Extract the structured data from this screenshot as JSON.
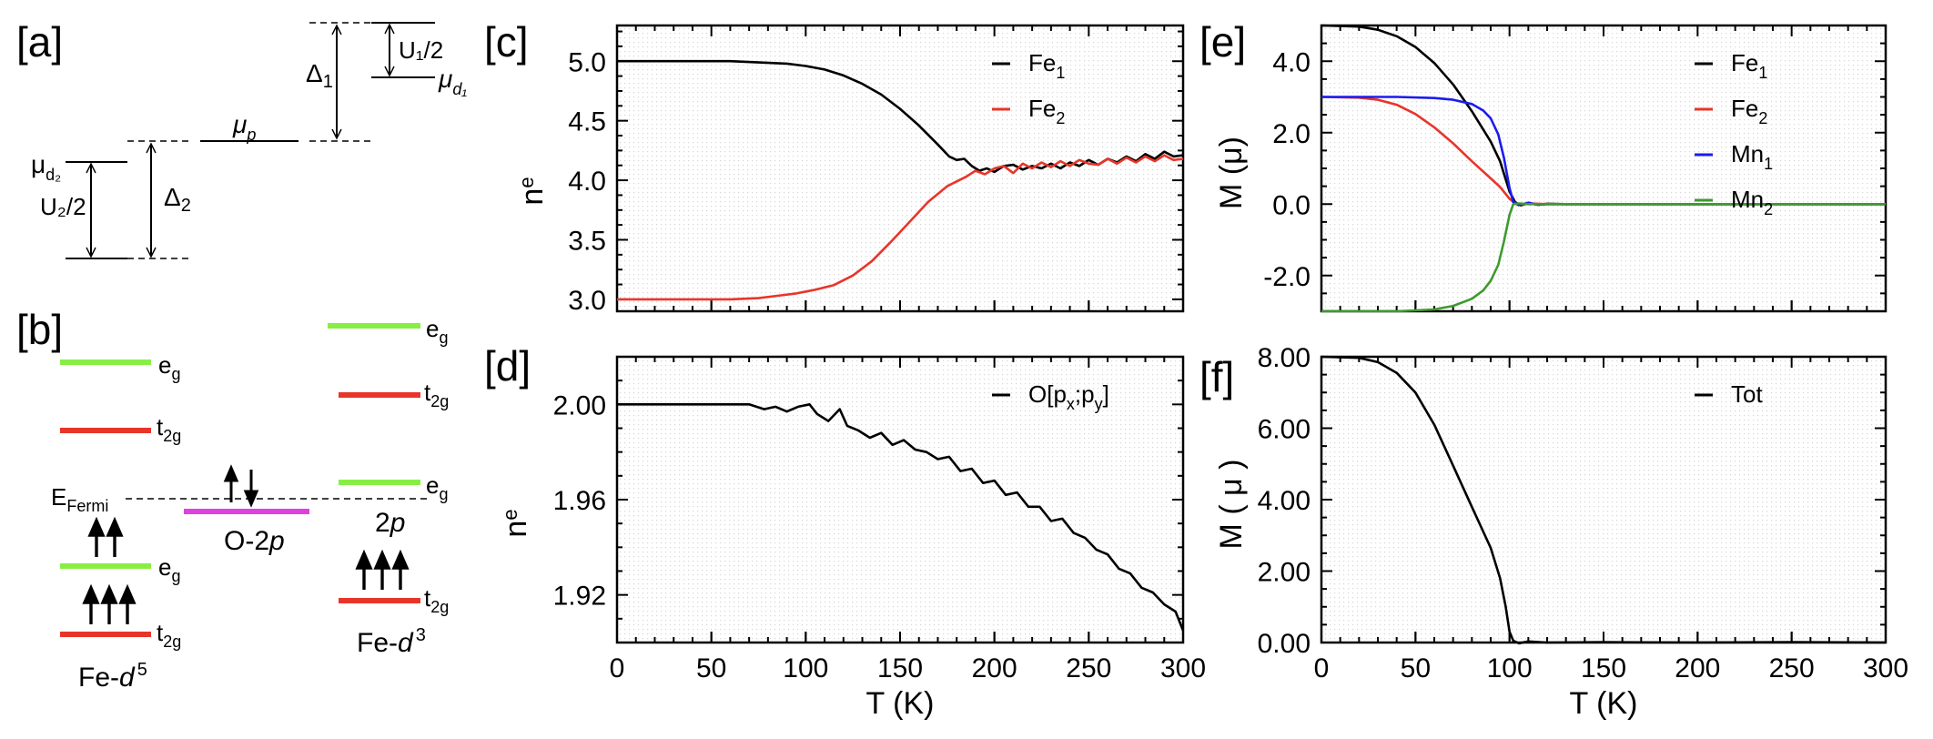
{
  "colors": {
    "black": "#000000",
    "red": "#e8352a",
    "blue": "#1b1bf0",
    "green": "#3e9a2e",
    "lime": "#88ee44",
    "magenta": "#e040e0"
  },
  "diagram_a": {
    "letter": "[a]",
    "mu_d2": "μ",
    "mu_d2_sub": "d₂",
    "u2_half": "U₂/2",
    "delta2": "Δ",
    "delta2_sub": "2",
    "mu_p": "μ",
    "mu_p_sub": "p",
    "delta1": "Δ",
    "delta1_sub": "1",
    "u1_half": "U₁/2",
    "mu_d1": "μ",
    "mu_d1_sub": "d₁"
  },
  "diagram_b": {
    "letter": "[b]",
    "eg": "e",
    "eg_sub": "g",
    "t2g": "t",
    "t2g_sub": "2g",
    "efermi": "E",
    "efermi_sub": "Fermi",
    "o2p": "O-2",
    "o2p_italic": "p",
    "twop_num": "2",
    "twop_italic": "p",
    "fe_d5": "Fe-",
    "fe_d5_d": "d",
    "fe_d5_sup": "5",
    "fe_d3": "Fe-",
    "fe_d3_d": "d",
    "fe_d3_sup": "3"
  },
  "chart_data": [
    {
      "id": "c",
      "letter": "[c]",
      "type": "line",
      "xlabel": "",
      "ylabel": "n",
      "ylabel_sub": "e",
      "xlim": [
        0,
        300
      ],
      "ylim": [
        2.9,
        5.3
      ],
      "xticks": [
        0,
        50,
        100,
        150,
        200,
        250,
        300
      ],
      "show_xtick_labels": false,
      "yticks": [
        3.0,
        3.5,
        4.0,
        4.5,
        5.0
      ],
      "ytick_labels": [
        "3.0",
        "3.5",
        "4.0",
        "4.5",
        "5.0"
      ],
      "legend": "top-right",
      "series": [
        {
          "name": "Fe",
          "name_sub": "1",
          "color": "#000000",
          "x": [
            0,
            60,
            90,
            100,
            110,
            120,
            130,
            140,
            150,
            160,
            170,
            176,
            180,
            184,
            188,
            192,
            196,
            200,
            205,
            210,
            215,
            220,
            225,
            230,
            235,
            240,
            245,
            250,
            255,
            260,
            265,
            270,
            275,
            280,
            285,
            290,
            295,
            300
          ],
          "y": [
            5.0,
            5.0,
            4.98,
            4.96,
            4.93,
            4.88,
            4.81,
            4.72,
            4.6,
            4.46,
            4.3,
            4.2,
            4.17,
            4.18,
            4.12,
            4.08,
            4.1,
            4.07,
            4.12,
            4.13,
            4.09,
            4.12,
            4.1,
            4.14,
            4.1,
            4.15,
            4.12,
            4.17,
            4.13,
            4.18,
            4.15,
            4.2,
            4.16,
            4.22,
            4.18,
            4.24,
            4.2,
            4.21
          ]
        },
        {
          "name": "Fe",
          "name_sub": "2",
          "color": "#e8352a",
          "x": [
            0,
            60,
            75,
            85,
            95,
            105,
            115,
            125,
            135,
            145,
            155,
            165,
            175,
            185,
            190,
            195,
            200,
            205,
            210,
            215,
            220,
            225,
            230,
            235,
            240,
            245,
            250,
            255,
            260,
            265,
            270,
            275,
            280,
            285,
            290,
            295,
            300
          ],
          "y": [
            3.0,
            3.0,
            3.01,
            3.03,
            3.05,
            3.08,
            3.12,
            3.2,
            3.32,
            3.48,
            3.65,
            3.82,
            3.95,
            4.03,
            4.08,
            4.05,
            4.1,
            4.12,
            4.06,
            4.14,
            4.1,
            4.15,
            4.11,
            4.16,
            4.12,
            4.17,
            4.14,
            4.13,
            4.18,
            4.14,
            4.19,
            4.15,
            4.2,
            4.16,
            4.21,
            4.17,
            4.18
          ]
        }
      ]
    },
    {
      "id": "d",
      "letter": "[d]",
      "type": "line",
      "xlabel": "T (K)",
      "ylabel": "n",
      "ylabel_sub": "e",
      "xlim": [
        0,
        300
      ],
      "ylim": [
        1.9,
        2.02
      ],
      "xticks": [
        0,
        50,
        100,
        150,
        200,
        250,
        300
      ],
      "xtick_labels": [
        "0",
        "50",
        "100",
        "150",
        "200",
        "250",
        "300"
      ],
      "show_xtick_labels": true,
      "yticks": [
        1.92,
        1.96,
        2.0
      ],
      "ytick_labels": [
        "1.92",
        "1.96",
        "2.00"
      ],
      "legend": "top-right",
      "series": [
        {
          "name": "O[p",
          "name_sub1": "x",
          "name_mid": ";p",
          "name_sub2": "y",
          "name_end": "]",
          "color": "#000000",
          "x": [
            0,
            70,
            78,
            84,
            90,
            96,
            102,
            106,
            112,
            118,
            122,
            128,
            134,
            140,
            146,
            152,
            158,
            164,
            170,
            176,
            182,
            188,
            194,
            200,
            206,
            212,
            218,
            224,
            230,
            236,
            242,
            248,
            254,
            260,
            266,
            272,
            278,
            284,
            290,
            296,
            300
          ],
          "y": [
            2.0,
            2.0,
            1.998,
            1.999,
            1.997,
            1.999,
            2.0,
            1.996,
            1.993,
            1.998,
            1.991,
            1.989,
            1.986,
            1.988,
            1.983,
            1.985,
            1.981,
            1.98,
            1.977,
            1.978,
            1.972,
            1.973,
            1.967,
            1.968,
            1.962,
            1.963,
            1.957,
            1.957,
            1.951,
            1.952,
            1.946,
            1.944,
            1.939,
            1.937,
            1.931,
            1.929,
            1.923,
            1.921,
            1.916,
            1.913,
            1.905
          ]
        }
      ]
    },
    {
      "id": "e",
      "letter": "[e]",
      "type": "line",
      "xlabel": "",
      "ylabel": "M (μ)",
      "xlim": [
        0,
        300
      ],
      "ylim": [
        -3.0,
        5.0
      ],
      "xticks": [
        0,
        50,
        100,
        150,
        200,
        250,
        300
      ],
      "show_xtick_labels": false,
      "yticks": [
        -2.0,
        0.0,
        2.0,
        4.0
      ],
      "ytick_labels": [
        "-2.0",
        "0.0",
        "2.0",
        "4.0"
      ],
      "legend": "top-right",
      "series": [
        {
          "name": "Fe",
          "name_sub": "1",
          "color": "#000000",
          "x": [
            0,
            20,
            30,
            40,
            50,
            60,
            70,
            80,
            90,
            95,
            100,
            103,
            106,
            110,
            115,
            120,
            130,
            300
          ],
          "y": [
            5.0,
            4.97,
            4.88,
            4.7,
            4.4,
            3.95,
            3.35,
            2.6,
            1.75,
            1.2,
            0.35,
            0.05,
            -0.04,
            0.03,
            -0.02,
            0.01,
            0.0,
            0.0
          ]
        },
        {
          "name": "Fe",
          "name_sub": "2",
          "color": "#e8352a",
          "x": [
            0,
            20,
            30,
            40,
            50,
            60,
            70,
            80,
            90,
            95,
            100,
            103,
            106,
            110,
            120,
            300
          ],
          "y": [
            3.0,
            2.98,
            2.92,
            2.78,
            2.52,
            2.15,
            1.7,
            1.2,
            0.72,
            0.48,
            0.15,
            0.02,
            -0.03,
            0.02,
            0.0,
            0.0
          ]
        },
        {
          "name": "Mn",
          "name_sub": "1",
          "color": "#1b1bf0",
          "x": [
            0,
            40,
            60,
            70,
            80,
            86,
            90,
            94,
            97,
            100,
            102,
            105,
            110,
            115,
            120,
            300
          ],
          "y": [
            3.0,
            3.0,
            2.97,
            2.92,
            2.8,
            2.62,
            2.4,
            1.95,
            1.3,
            0.45,
            0.05,
            -0.03,
            0.04,
            -0.02,
            0.0,
            0.0
          ]
        },
        {
          "name": "Mn",
          "name_sub": "2",
          "color": "#3e9a2e",
          "x": [
            0,
            40,
            60,
            70,
            80,
            86,
            90,
            94,
            97,
            100,
            102,
            105,
            110,
            300
          ],
          "y": [
            -3.0,
            -3.0,
            -2.95,
            -2.85,
            -2.65,
            -2.42,
            -2.15,
            -1.7,
            -1.05,
            -0.3,
            0.0,
            0.02,
            0.0,
            0.0
          ]
        }
      ]
    },
    {
      "id": "f",
      "letter": "[f]",
      "type": "line",
      "xlabel": "T (K)",
      "ylabel": "M ( μ )",
      "xlim": [
        0,
        300
      ],
      "ylim": [
        0.0,
        8.0
      ],
      "xticks": [
        0,
        50,
        100,
        150,
        200,
        250,
        300
      ],
      "xtick_labels": [
        "0",
        "50",
        "100",
        "150",
        "200",
        "250",
        "300"
      ],
      "show_xtick_labels": true,
      "yticks": [
        0.0,
        2.0,
        4.0,
        6.0,
        8.0
      ],
      "ytick_labels": [
        "0.00",
        "2.00",
        "4.00",
        "6.00",
        "8.00"
      ],
      "legend": "top-right",
      "series": [
        {
          "name": "Tot",
          "color": "#000000",
          "x": [
            0,
            20,
            30,
            40,
            50,
            60,
            70,
            80,
            90,
            95,
            98,
            100,
            102,
            105,
            110,
            120,
            150,
            200,
            250,
            300
          ],
          "y": [
            8.0,
            7.97,
            7.85,
            7.55,
            7.0,
            6.1,
            4.95,
            3.8,
            2.65,
            1.8,
            1.0,
            0.3,
            0.05,
            -0.02,
            0.03,
            0.0,
            0.01,
            0.0,
            0.01,
            0.0
          ]
        }
      ]
    }
  ]
}
